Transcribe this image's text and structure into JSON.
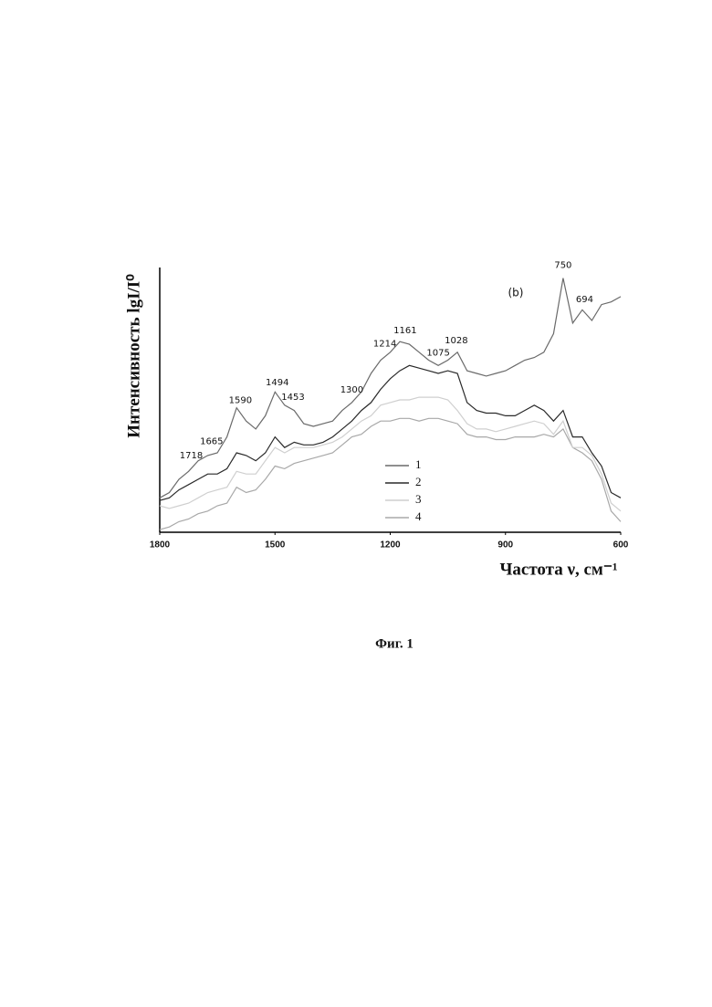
{
  "chart_data": {
    "type": "line",
    "y_label": "Интенсивность lgI/I⁰",
    "x_label": "Частота ν, см⁻¹",
    "caption": "Фиг. 1",
    "annotation": "(b)",
    "xlim": [
      1800,
      600
    ],
    "xticks": [
      1800,
      1500,
      1200,
      900,
      600
    ],
    "ylim": [
      0,
      1
    ],
    "peaks": [
      1718,
      1665,
      1590,
      1494,
      1453,
      1300,
      1214,
      1161,
      1075,
      1028,
      750,
      694
    ],
    "x": [
      1800,
      1775,
      1750,
      1725,
      1700,
      1675,
      1650,
      1625,
      1600,
      1575,
      1550,
      1525,
      1500,
      1475,
      1450,
      1425,
      1400,
      1375,
      1350,
      1325,
      1300,
      1275,
      1250,
      1225,
      1200,
      1175,
      1150,
      1125,
      1100,
      1075,
      1050,
      1025,
      1000,
      975,
      950,
      925,
      900,
      875,
      850,
      825,
      800,
      775,
      750,
      725,
      700,
      675,
      650,
      625,
      600
    ],
    "series": [
      {
        "name": "1",
        "color": "#6a6a6a",
        "values": [
          0.13,
          0.15,
          0.2,
          0.23,
          0.27,
          0.29,
          0.3,
          0.36,
          0.47,
          0.42,
          0.39,
          0.44,
          0.53,
          0.48,
          0.46,
          0.41,
          0.4,
          0.41,
          0.42,
          0.46,
          0.49,
          0.53,
          0.6,
          0.65,
          0.68,
          0.72,
          0.71,
          0.68,
          0.65,
          0.63,
          0.65,
          0.68,
          0.61,
          0.6,
          0.59,
          0.6,
          0.61,
          0.63,
          0.65,
          0.66,
          0.68,
          0.75,
          0.96,
          0.79,
          0.84,
          0.8,
          0.86,
          0.87,
          0.89
        ]
      },
      {
        "name": "2",
        "color": "#2a2a2a",
        "values": [
          0.12,
          0.13,
          0.16,
          0.18,
          0.2,
          0.22,
          0.22,
          0.24,
          0.3,
          0.29,
          0.27,
          0.3,
          0.36,
          0.32,
          0.34,
          0.33,
          0.33,
          0.34,
          0.36,
          0.39,
          0.42,
          0.46,
          0.49,
          0.54,
          0.58,
          0.61,
          0.63,
          0.62,
          0.61,
          0.6,
          0.61,
          0.6,
          0.49,
          0.46,
          0.45,
          0.45,
          0.44,
          0.44,
          0.46,
          0.48,
          0.46,
          0.42,
          0.46,
          0.36,
          0.36,
          0.3,
          0.25,
          0.15,
          0.13
        ]
      },
      {
        "name": "3",
        "color": "#cfcfcf",
        "values": [
          0.1,
          0.09,
          0.1,
          0.11,
          0.13,
          0.15,
          0.16,
          0.17,
          0.23,
          0.22,
          0.22,
          0.27,
          0.32,
          0.3,
          0.32,
          0.32,
          0.32,
          0.33,
          0.34,
          0.36,
          0.39,
          0.42,
          0.44,
          0.48,
          0.49,
          0.5,
          0.5,
          0.51,
          0.51,
          0.51,
          0.5,
          0.46,
          0.41,
          0.39,
          0.39,
          0.38,
          0.39,
          0.4,
          0.41,
          0.42,
          0.41,
          0.37,
          0.42,
          0.32,
          0.32,
          0.29,
          0.22,
          0.11,
          0.08
        ]
      },
      {
        "name": "4",
        "color": "#a8a8a8",
        "values": [
          0.01,
          0.02,
          0.04,
          0.05,
          0.07,
          0.08,
          0.1,
          0.11,
          0.17,
          0.15,
          0.16,
          0.2,
          0.25,
          0.24,
          0.26,
          0.27,
          0.28,
          0.29,
          0.3,
          0.33,
          0.36,
          0.37,
          0.4,
          0.42,
          0.42,
          0.43,
          0.43,
          0.42,
          0.43,
          0.43,
          0.42,
          0.41,
          0.37,
          0.36,
          0.36,
          0.35,
          0.35,
          0.36,
          0.36,
          0.36,
          0.37,
          0.36,
          0.39,
          0.32,
          0.3,
          0.27,
          0.2,
          0.08,
          0.04
        ]
      }
    ]
  }
}
